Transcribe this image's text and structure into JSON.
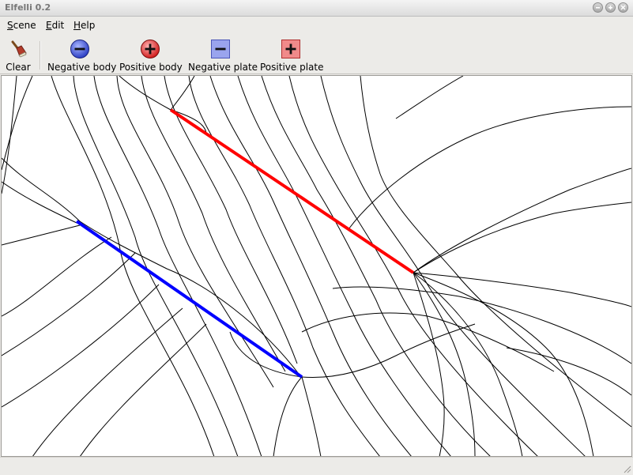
{
  "window": {
    "title": "Elfelli 0.2"
  },
  "menu": [
    {
      "label": "Scene",
      "mnemonic": "S",
      "rest": "cene"
    },
    {
      "label": "Edit",
      "mnemonic": "E",
      "rest": "dit"
    },
    {
      "label": "Help",
      "mnemonic": "H",
      "rest": "elp"
    }
  ],
  "toolbar": {
    "clear": {
      "label": "Clear",
      "icon": "broom-icon"
    },
    "negative_body": {
      "label": "Negative body",
      "icon": "negative-body-icon"
    },
    "positive_body": {
      "label": "Positive body",
      "icon": "positive-body-icon"
    },
    "negative_plate": {
      "label": "Negative plate",
      "icon": "negative-plate-icon"
    },
    "positive_plate": {
      "label": "Positive plate",
      "icon": "positive-plate-icon"
    }
  },
  "scene": {
    "positive_plate_color": "#ff0000",
    "negative_plate_color": "#0000ff",
    "field_line_color": "#000000"
  }
}
